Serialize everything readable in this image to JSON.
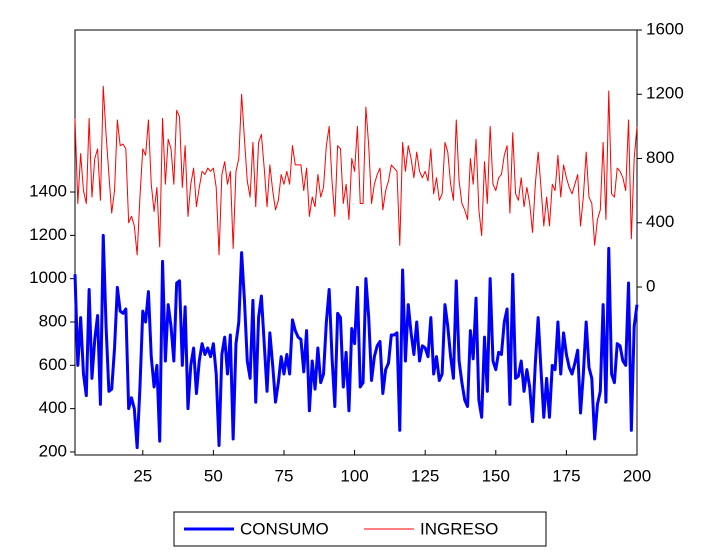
{
  "chart_data": {
    "type": "line",
    "x": [
      1,
      2,
      3,
      4,
      5,
      6,
      7,
      8,
      9,
      10,
      11,
      12,
      13,
      14,
      15,
      16,
      17,
      18,
      19,
      20,
      21,
      22,
      23,
      24,
      25,
      26,
      27,
      28,
      29,
      30,
      31,
      32,
      33,
      34,
      35,
      36,
      37,
      38,
      39,
      40,
      41,
      42,
      43,
      44,
      45,
      46,
      47,
      48,
      49,
      50,
      51,
      52,
      53,
      54,
      55,
      56,
      57,
      58,
      59,
      60,
      61,
      62,
      63,
      64,
      65,
      66,
      67,
      68,
      69,
      70,
      71,
      72,
      73,
      74,
      75,
      76,
      77,
      78,
      79,
      80,
      81,
      82,
      83,
      84,
      85,
      86,
      87,
      88,
      89,
      90,
      91,
      92,
      93,
      94,
      95,
      96,
      97,
      98,
      99,
      100,
      101,
      102,
      103,
      104,
      105,
      106,
      107,
      108,
      109,
      110,
      111,
      112,
      113,
      114,
      115,
      116,
      117,
      118,
      119,
      120,
      121,
      122,
      123,
      124,
      125,
      126,
      127,
      128,
      129,
      130,
      131,
      132,
      133,
      134,
      135,
      136,
      137,
      138,
      139,
      140,
      141,
      142,
      143,
      144,
      145,
      146,
      147,
      148,
      149,
      150,
      151,
      152,
      153,
      154,
      155,
      156,
      157,
      158,
      159,
      160,
      161,
      162,
      163,
      164,
      165,
      166,
      167,
      168,
      169,
      170,
      171,
      172,
      173,
      174,
      175,
      176,
      177,
      178,
      179,
      180,
      181,
      182,
      183,
      184,
      185,
      186,
      187,
      188,
      189,
      190,
      191,
      192,
      193,
      194,
      195,
      196,
      197,
      198,
      199,
      200
    ],
    "series": [
      {
        "name": "CONSUMO",
        "color": "#0000ff",
        "line_width": 3,
        "values": [
          1020,
          600,
          820,
          560,
          460,
          950,
          540,
          720,
          830,
          420,
          1200,
          780,
          480,
          490,
          680,
          960,
          850,
          840,
          860,
          400,
          450,
          400,
          220,
          500,
          850,
          800,
          940,
          640,
          500,
          600,
          250,
          1080,
          620,
          880,
          780,
          620,
          980,
          990,
          600,
          870,
          400,
          600,
          680,
          470,
          620,
          700,
          650,
          680,
          640,
          700,
          560,
          230,
          650,
          730,
          560,
          740,
          260,
          700,
          800,
          1120,
          900,
          620,
          540,
          900,
          430,
          820,
          920,
          700,
          480,
          750,
          600,
          430,
          520,
          640,
          560,
          650,
          560,
          810,
          760,
          730,
          720,
          570,
          760,
          390,
          620,
          490,
          680,
          520,
          560,
          800,
          950,
          640,
          410,
          840,
          820,
          500,
          660,
          390,
          770,
          700,
          960,
          500,
          520,
          1000,
          820,
          530,
          640,
          690,
          710,
          470,
          580,
          610,
          740,
          740,
          750,
          300,
          1040,
          620,
          880,
          750,
          650,
          800,
          620,
          690,
          680,
          640,
          820,
          560,
          640,
          530,
          560,
          880,
          780,
          640,
          540,
          990,
          620,
          520,
          440,
          410,
          760,
          630,
          910,
          440,
          360,
          730,
          480,
          1000,
          620,
          580,
          660,
          650,
          800,
          860,
          420,
          1020,
          540,
          550,
          620,
          480,
          580,
          500,
          340,
          610,
          820,
          580,
          360,
          540,
          360,
          600,
          580,
          800,
          560,
          750,
          650,
          590,
          560,
          610,
          670,
          380,
          560,
          800,
          590,
          540,
          260,
          420,
          480,
          880,
          430,
          1140,
          560,
          520,
          700,
          690,
          620,
          600,
          980,
          300,
          780,
          880
        ]
      },
      {
        "name": "INGRESO",
        "color": "#ff0000",
        "line_width": 1,
        "axis": "y2",
        "values": [
          1050,
          520,
          830,
          600,
          520,
          1050,
          560,
          800,
          860,
          540,
          1250,
          950,
          700,
          460,
          600,
          1040,
          880,
          890,
          860,
          400,
          440,
          380,
          200,
          560,
          860,
          820,
          1040,
          640,
          470,
          620,
          250,
          1050,
          640,
          920,
          860,
          640,
          1100,
          1060,
          620,
          880,
          440,
          640,
          740,
          500,
          620,
          720,
          700,
          740,
          720,
          740,
          620,
          200,
          700,
          780,
          640,
          720,
          240,
          720,
          800,
          1200,
          920,
          660,
          560,
          900,
          500,
          900,
          950,
          740,
          500,
          760,
          600,
          480,
          540,
          700,
          640,
          720,
          640,
          880,
          760,
          760,
          760,
          600,
          740,
          440,
          560,
          500,
          700,
          560,
          620,
          880,
          1000,
          660,
          440,
          880,
          860,
          520,
          640,
          420,
          800,
          720,
          1000,
          520,
          520,
          1120,
          880,
          520,
          640,
          700,
          740,
          480,
          600,
          660,
          760,
          740,
          720,
          260,
          900,
          720,
          880,
          800,
          680,
          840,
          720,
          680,
          720,
          660,
          860,
          580,
          680,
          540,
          580,
          900,
          840,
          640,
          540,
          1040,
          660,
          520,
          480,
          420,
          800,
          640,
          920,
          480,
          320,
          780,
          520,
          1000,
          640,
          600,
          680,
          700,
          820,
          880,
          460,
          960,
          580,
          540,
          680,
          500,
          620,
          520,
          340,
          640,
          840,
          620,
          380,
          560,
          380,
          640,
          600,
          820,
          560,
          760,
          680,
          620,
          580,
          640,
          700,
          380,
          560,
          840,
          560,
          520,
          260,
          420,
          480,
          900,
          420,
          1220,
          580,
          560,
          740,
          720,
          680,
          600,
          1040,
          300,
          800,
          1000
        ]
      }
    ],
    "xlim": [
      1,
      200
    ],
    "xticks": [
      25,
      50,
      75,
      100,
      125,
      150,
      175,
      200
    ],
    "ylim": [
      186,
      2148
    ],
    "yticks": [
      200,
      400,
      600,
      800,
      1000,
      1200,
      1400
    ],
    "y2lim": [
      -1046,
      1600
    ],
    "y2ticks": [
      0,
      400,
      800,
      1200,
      1600
    ],
    "legend": "bottom"
  }
}
